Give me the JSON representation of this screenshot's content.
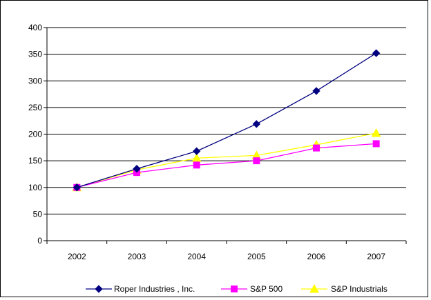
{
  "chart_data": {
    "type": "line",
    "categories": [
      "2002",
      "2003",
      "2004",
      "2005",
      "2006",
      "2007"
    ],
    "ylim": [
      0,
      400
    ],
    "yticks": [
      0,
      50,
      100,
      150,
      200,
      250,
      300,
      350,
      400
    ],
    "grid": "horizontal",
    "legend_position": "bottom",
    "series": [
      {
        "name": "Roper Industries , Inc.",
        "color": "#000080",
        "marker": "diamond",
        "values": [
          100,
          135,
          168,
          219,
          281,
          352
        ]
      },
      {
        "name": "S&P 500",
        "color": "#FF00FF",
        "marker": "square",
        "values": [
          100,
          128,
          142,
          150,
          174,
          182
        ]
      },
      {
        "name": "S&P Industrials",
        "color": "#FFFF00",
        "marker": "triangle",
        "values": [
          100,
          133,
          155,
          160,
          180,
          202
        ]
      }
    ]
  }
}
